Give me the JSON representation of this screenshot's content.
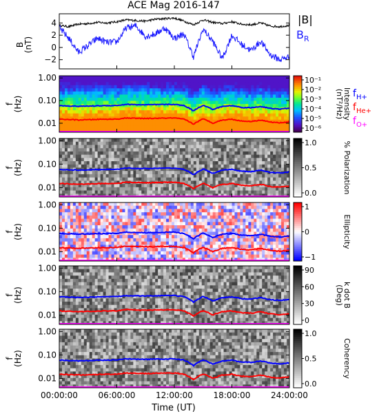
{
  "title": "ACE Mag 2016-147",
  "colors": {
    "total_field": "#000000",
    "radial_field": "#1a1aff",
    "h_line": "#0000ff",
    "he_line": "#ff0000",
    "o_line": "#ff00ff",
    "axis": "#000000"
  },
  "chart_data": [
    {
      "type": "line",
      "panel": "field",
      "ylabel": "B\n(nT)",
      "ylim": [
        -3.5,
        5.5
      ],
      "yticks": [
        4,
        2,
        0,
        -2
      ],
      "series": [
        {
          "name": "|B|",
          "color": "#000000",
          "x_hours": [
            0,
            1,
            2,
            3,
            4,
            5,
            6,
            7,
            8,
            9,
            10,
            11,
            12,
            13,
            14,
            15,
            16,
            17,
            18,
            19,
            20,
            21,
            22,
            23,
            24
          ],
          "values": [
            3.6,
            3.4,
            3.8,
            3.9,
            4.1,
            4.0,
            4.2,
            4.5,
            4.4,
            4.3,
            4.6,
            4.7,
            4.8,
            4.3,
            3.7,
            4.5,
            4.1,
            3.9,
            4.2,
            3.8,
            3.7,
            4.0,
            3.5,
            3.4,
            3.6
          ]
        },
        {
          "name": "B_R",
          "color": "#1a1aff",
          "x_hours": [
            0,
            1,
            2,
            3,
            4,
            5,
            6,
            7,
            8,
            9,
            10,
            11,
            12,
            13,
            14,
            15,
            16,
            17,
            18,
            19,
            20,
            21,
            22,
            23,
            24
          ],
          "values": [
            3.2,
            1.5,
            -0.8,
            0.3,
            1.5,
            0.8,
            0.9,
            3.2,
            3.5,
            1.8,
            2.2,
            3.2,
            1.5,
            2.2,
            -1.5,
            3.0,
            1.0,
            -1.8,
            2.0,
            0.5,
            -0.5,
            1.0,
            -1.2,
            -2.0,
            -1.5
          ]
        }
      ]
    },
    {
      "type": "heatmap",
      "panel": "intensity",
      "ylabel": "f\n(Hz)",
      "yscale": "log",
      "yticks": [
        "1.00",
        "0.10",
        "0.01"
      ],
      "colorbar": {
        "label": "Intensity\n(nT²/Hz)",
        "ticks": [
          "10⁻¹",
          "10⁻²",
          "10⁻³",
          "10⁻⁴",
          "10⁻⁵",
          "10⁻⁶"
        ]
      },
      "legend": [
        {
          "label": "f",
          "sub": "H+",
          "color": "#0000ff"
        },
        {
          "label": "f",
          "sub": "He+",
          "color": "#ff0000"
        },
        {
          "label": "f",
          "sub": "O+",
          "color": "#ff00ff"
        }
      ]
    },
    {
      "type": "heatmap",
      "panel": "polarization",
      "ylabel": "f\n(Hz)",
      "yscale": "log",
      "yticks": [
        "1.00",
        "0.10",
        "0.01"
      ],
      "colorbar": {
        "label": "% Polarization",
        "ticks": [
          "1.0",
          "0.5",
          "0.0"
        ]
      }
    },
    {
      "type": "heatmap",
      "panel": "ellipticity",
      "ylabel": "f\n(Hz)",
      "yscale": "log",
      "yticks": [
        "1.00",
        "0.10",
        "0.01"
      ],
      "colorbar": {
        "label": "Ellipticity",
        "ticks": [
          "1",
          "0",
          "−1"
        ]
      }
    },
    {
      "type": "heatmap",
      "panel": "kdotb",
      "ylabel": "f\n(Hz)",
      "yscale": "log",
      "yticks": [
        "1.00",
        "0.10",
        "0.01"
      ],
      "colorbar": {
        "label": "k dot B\n(Deg)",
        "ticks": [
          "90",
          "60",
          "30",
          "0"
        ]
      }
    },
    {
      "type": "heatmap",
      "panel": "coherency",
      "ylabel": "f\n(Hz)",
      "yscale": "log",
      "yticks": [
        "1.00",
        "0.10",
        "0.01"
      ],
      "colorbar": {
        "label": "Coherency",
        "ticks": [
          "1.0",
          "0.5",
          "0.0"
        ]
      }
    }
  ],
  "gyrofrequencies": {
    "x_hours": [
      0,
      1,
      2,
      3,
      4,
      5,
      6,
      7,
      8,
      9,
      10,
      11,
      12,
      13,
      14,
      15,
      16,
      17,
      18,
      19,
      20,
      21,
      22,
      23,
      24
    ],
    "h_hz": [
      0.06,
      0.058,
      0.056,
      0.057,
      0.059,
      0.06,
      0.061,
      0.068,
      0.066,
      0.065,
      0.066,
      0.067,
      0.068,
      0.06,
      0.035,
      0.062,
      0.04,
      0.055,
      0.06,
      0.05,
      0.048,
      0.055,
      0.045,
      0.042,
      0.046
    ],
    "he_hz": [
      0.015,
      0.0145,
      0.014,
      0.0143,
      0.0148,
      0.015,
      0.0152,
      0.017,
      0.0165,
      0.0162,
      0.0165,
      0.0168,
      0.017,
      0.015,
      0.009,
      0.0155,
      0.01,
      0.0138,
      0.015,
      0.0125,
      0.012,
      0.0138,
      0.0112,
      0.0105,
      0.0115
    ],
    "o_hz": [
      0.0038,
      0.0036,
      0.0035,
      0.0036,
      0.0037,
      0.0038,
      0.0038,
      0.0042,
      0.0041,
      0.0041,
      0.0041,
      0.0042,
      0.0042,
      0.0038,
      0.003,
      0.0039,
      0.0032,
      0.0035,
      0.0038,
      0.0033,
      0.0032,
      0.0035,
      0.003,
      0.0029,
      0.0031
    ]
  },
  "x_axis": {
    "label": "Time (UT)",
    "xlim_hours": [
      0,
      24
    ],
    "ticks": [
      {
        "hour": 0,
        "label": "00:00:00"
      },
      {
        "hour": 6,
        "label": "06:00:00"
      },
      {
        "hour": 12,
        "label": "12:00:00"
      },
      {
        "hour": 18,
        "label": "18:00:00"
      },
      {
        "hour": 24,
        "label": "24:00:00"
      }
    ]
  }
}
